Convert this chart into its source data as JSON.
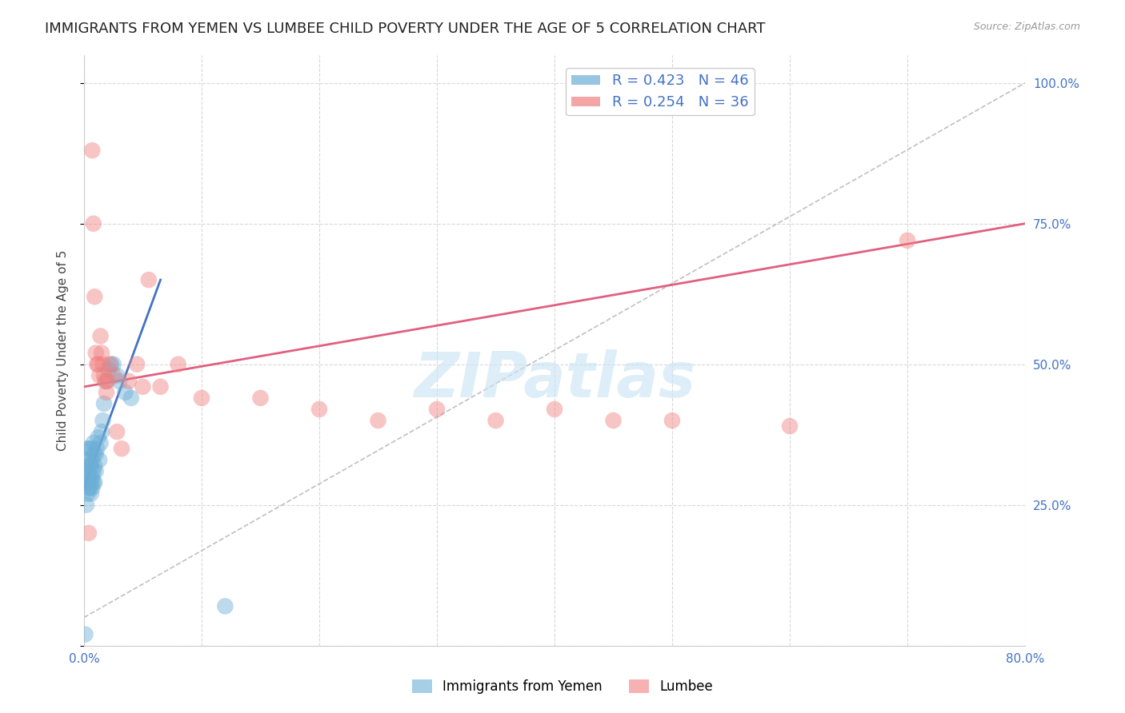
{
  "title": "IMMIGRANTS FROM YEMEN VS LUMBEE CHILD POVERTY UNDER THE AGE OF 5 CORRELATION CHART",
  "source": "Source: ZipAtlas.com",
  "ylabel": "Child Poverty Under the Age of 5",
  "x_min": 0.0,
  "x_max": 0.8,
  "y_min": 0.0,
  "y_max": 1.05,
  "x_ticks": [
    0.0,
    0.1,
    0.2,
    0.3,
    0.4,
    0.5,
    0.6,
    0.7,
    0.8
  ],
  "y_ticks": [
    0.0,
    0.25,
    0.5,
    0.75,
    1.0
  ],
  "y_tick_labels_right": [
    "",
    "25.0%",
    "50.0%",
    "75.0%",
    "100.0%"
  ],
  "legend_label_blue": "R = 0.423   N = 46",
  "legend_label_pink": "R = 0.254   N = 36",
  "blue_scatter_x": [
    0.001,
    0.002,
    0.002,
    0.002,
    0.003,
    0.003,
    0.003,
    0.003,
    0.004,
    0.004,
    0.004,
    0.005,
    0.005,
    0.005,
    0.005,
    0.006,
    0.006,
    0.006,
    0.006,
    0.007,
    0.007,
    0.007,
    0.008,
    0.008,
    0.008,
    0.008,
    0.009,
    0.009,
    0.01,
    0.01,
    0.011,
    0.012,
    0.013,
    0.014,
    0.015,
    0.016,
    0.017,
    0.019,
    0.021,
    0.023,
    0.025,
    0.028,
    0.03,
    0.035,
    0.04,
    0.12
  ],
  "blue_scatter_y": [
    0.02,
    0.25,
    0.31,
    0.35,
    0.27,
    0.29,
    0.31,
    0.33,
    0.28,
    0.3,
    0.32,
    0.28,
    0.3,
    0.32,
    0.35,
    0.27,
    0.29,
    0.32,
    0.35,
    0.28,
    0.3,
    0.33,
    0.29,
    0.31,
    0.34,
    0.36,
    0.29,
    0.32,
    0.31,
    0.34,
    0.35,
    0.37,
    0.33,
    0.36,
    0.38,
    0.4,
    0.43,
    0.47,
    0.49,
    0.5,
    0.5,
    0.48,
    0.47,
    0.45,
    0.44,
    0.07
  ],
  "pink_scatter_x": [
    0.004,
    0.007,
    0.008,
    0.009,
    0.01,
    0.011,
    0.012,
    0.013,
    0.014,
    0.015,
    0.016,
    0.017,
    0.018,
    0.019,
    0.02,
    0.022,
    0.025,
    0.028,
    0.032,
    0.038,
    0.045,
    0.055,
    0.065,
    0.08,
    0.1,
    0.15,
    0.2,
    0.25,
    0.3,
    0.35,
    0.4,
    0.45,
    0.5,
    0.6,
    0.7,
    0.05
  ],
  "pink_scatter_y": [
    0.2,
    0.88,
    0.75,
    0.62,
    0.52,
    0.5,
    0.5,
    0.48,
    0.55,
    0.52,
    0.5,
    0.48,
    0.47,
    0.45,
    0.47,
    0.5,
    0.48,
    0.38,
    0.35,
    0.47,
    0.5,
    0.65,
    0.46,
    0.5,
    0.44,
    0.44,
    0.42,
    0.4,
    0.42,
    0.4,
    0.42,
    0.4,
    0.4,
    0.39,
    0.72,
    0.46
  ],
  "blue_line_x0": 0.0,
  "blue_line_x1": 0.065,
  "blue_line_y0": 0.28,
  "blue_line_y1": 0.65,
  "pink_line_x0": 0.0,
  "pink_line_x1": 0.8,
  "pink_line_y0": 0.46,
  "pink_line_y1": 0.75,
  "diag_line_x0": 0.0,
  "diag_line_x1": 0.8,
  "diag_line_y0": 0.05,
  "diag_line_y1": 1.0,
  "watermark": "ZIPatlas",
  "blue_scatter_color": "#6baed6",
  "pink_scatter_color": "#f08080",
  "blue_line_color": "#4472c4",
  "pink_line_color": "#e06080",
  "diag_line_color": "#c0c0c0",
  "background_color": "#ffffff",
  "grid_color": "#d8d8d8",
  "axis_label_color": "#4472c4",
  "tick_label_color": "#4472c4",
  "title_color": "#222222",
  "ylabel_color": "#444444",
  "title_fontsize": 13,
  "axis_fontsize": 11,
  "tick_fontsize": 11,
  "legend_fontsize": 13
}
